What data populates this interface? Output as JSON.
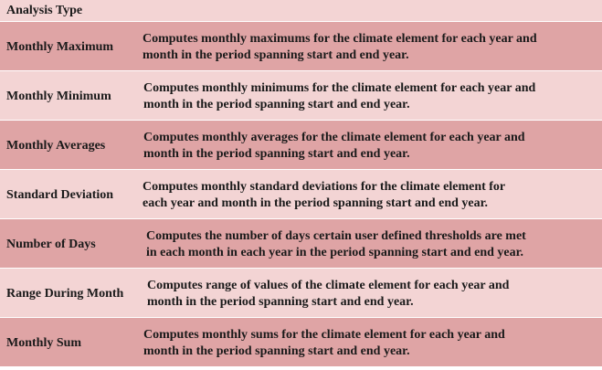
{
  "header": {
    "title": "Analysis Type"
  },
  "rows": [
    {
      "name": "Monthly Maximum",
      "line1": "Computes monthly maximums for the climate element for each year and",
      "line2": "month in the period spanning start and end year."
    },
    {
      "name": "Monthly Minimum",
      "line1": "Computes monthly minimums for the climate element for each year and",
      "line2": "month in the period  spanning start and end year."
    },
    {
      "name": "Monthly Averages",
      "line1": "Computes monthly averages for the climate element for each year and",
      "line2": "month in the period  spanning start and end year."
    },
    {
      "name": "Standard Deviation",
      "line1": "Computes monthly standard deviations for the climate element for",
      "line2": "each year and month in the period  spanning start and end year."
    },
    {
      "name": "Number of Days",
      "line1": "Computes the number of days certain user defined thresholds are met",
      "line2": "in each month in each year in the period spanning start and end year."
    },
    {
      "name": "Range During Month",
      "line1": "Computes range of values of the climate element for each year and",
      "line2": "month in the period spanning start and end year."
    },
    {
      "name": "Monthly Sum",
      "line1": "Computes monthly sums for the climate element for each year and",
      "line2": "month in the period spanning start and end year."
    }
  ],
  "colors": {
    "row_dark": "#dfa4a5",
    "row_light": "#f3d4d4",
    "text": "#1a1a1a"
  }
}
